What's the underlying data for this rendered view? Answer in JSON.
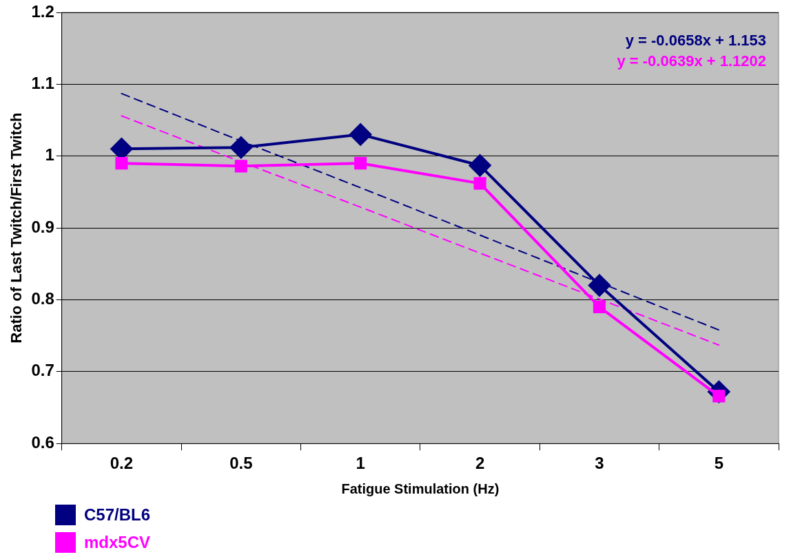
{
  "chart_data": {
    "type": "line",
    "xlabel": "Fatigue Stimulation (Hz)",
    "ylabel": "Ratio of Last Twitch/First Twitch",
    "categories": [
      "0.2",
      "0.5",
      "1",
      "2",
      "3",
      "5"
    ],
    "series": [
      {
        "name": "C57/BL6",
        "color": "#000080",
        "marker": "diamond",
        "values": [
          1.01,
          1.012,
          1.03,
          0.987,
          0.82,
          0.672
        ]
      },
      {
        "name": "mdx5CV",
        "color": "#ff00ff",
        "marker": "square",
        "values": [
          0.99,
          0.986,
          0.99,
          0.962,
          0.79,
          0.666
        ]
      },
      {
        "type": "line",
        "color": "#000080",
        "marker": "none",
        "line_style": "dashed",
        "values": [
          1.087,
          1.021,
          0.956,
          0.89,
          0.824,
          0.758
        ]
      },
      {
        "type": "line",
        "color": "#ff00ff",
        "marker": "none",
        "line_style": "dashed",
        "values": [
          1.056,
          0.992,
          0.929,
          0.865,
          0.801,
          0.737
        ]
      }
    ],
    "annotations": [
      "y = -0.0658x + 1.153",
      "y = -0.0639x + 1.1202"
    ],
    "ylim": [
      0.6,
      1.2
    ],
    "yticks": [
      0.6,
      0.7,
      0.8,
      0.9,
      1,
      1.1,
      1.2
    ],
    "grid": "y",
    "legend": "bottom left"
  }
}
